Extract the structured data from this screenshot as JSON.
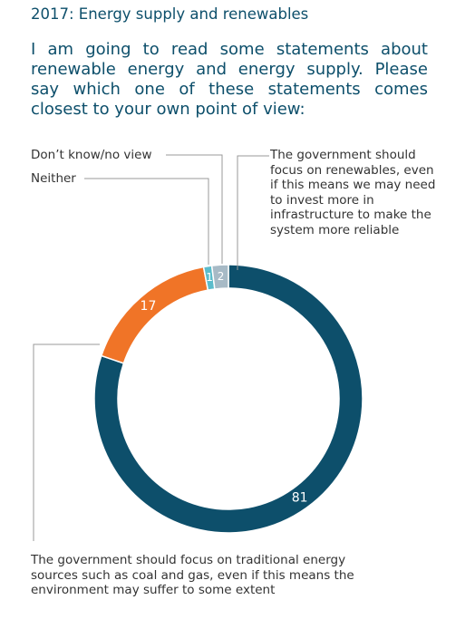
{
  "chart_data": {
    "type": "donut",
    "title": "2017: Energy supply and renewables",
    "subtitle": "I am going to read some statements about renewable energy and energy supply. Please say which one of these statements comes closest to your own point of view:",
    "categories": [
      "The government should focus on renewables, even if this means we may need to invest more in infrastructure to make the system more reliable",
      "The government should focus on traditional energy sources such as coal and gas, even if this means the environment may suffer to some extent",
      "Neither",
      "Don’t know/no view"
    ],
    "values": [
      81,
      17,
      1,
      2
    ],
    "colors": [
      "#0d4f6b",
      "#f07427",
      "#5bbccb",
      "#a7bac6"
    ]
  }
}
